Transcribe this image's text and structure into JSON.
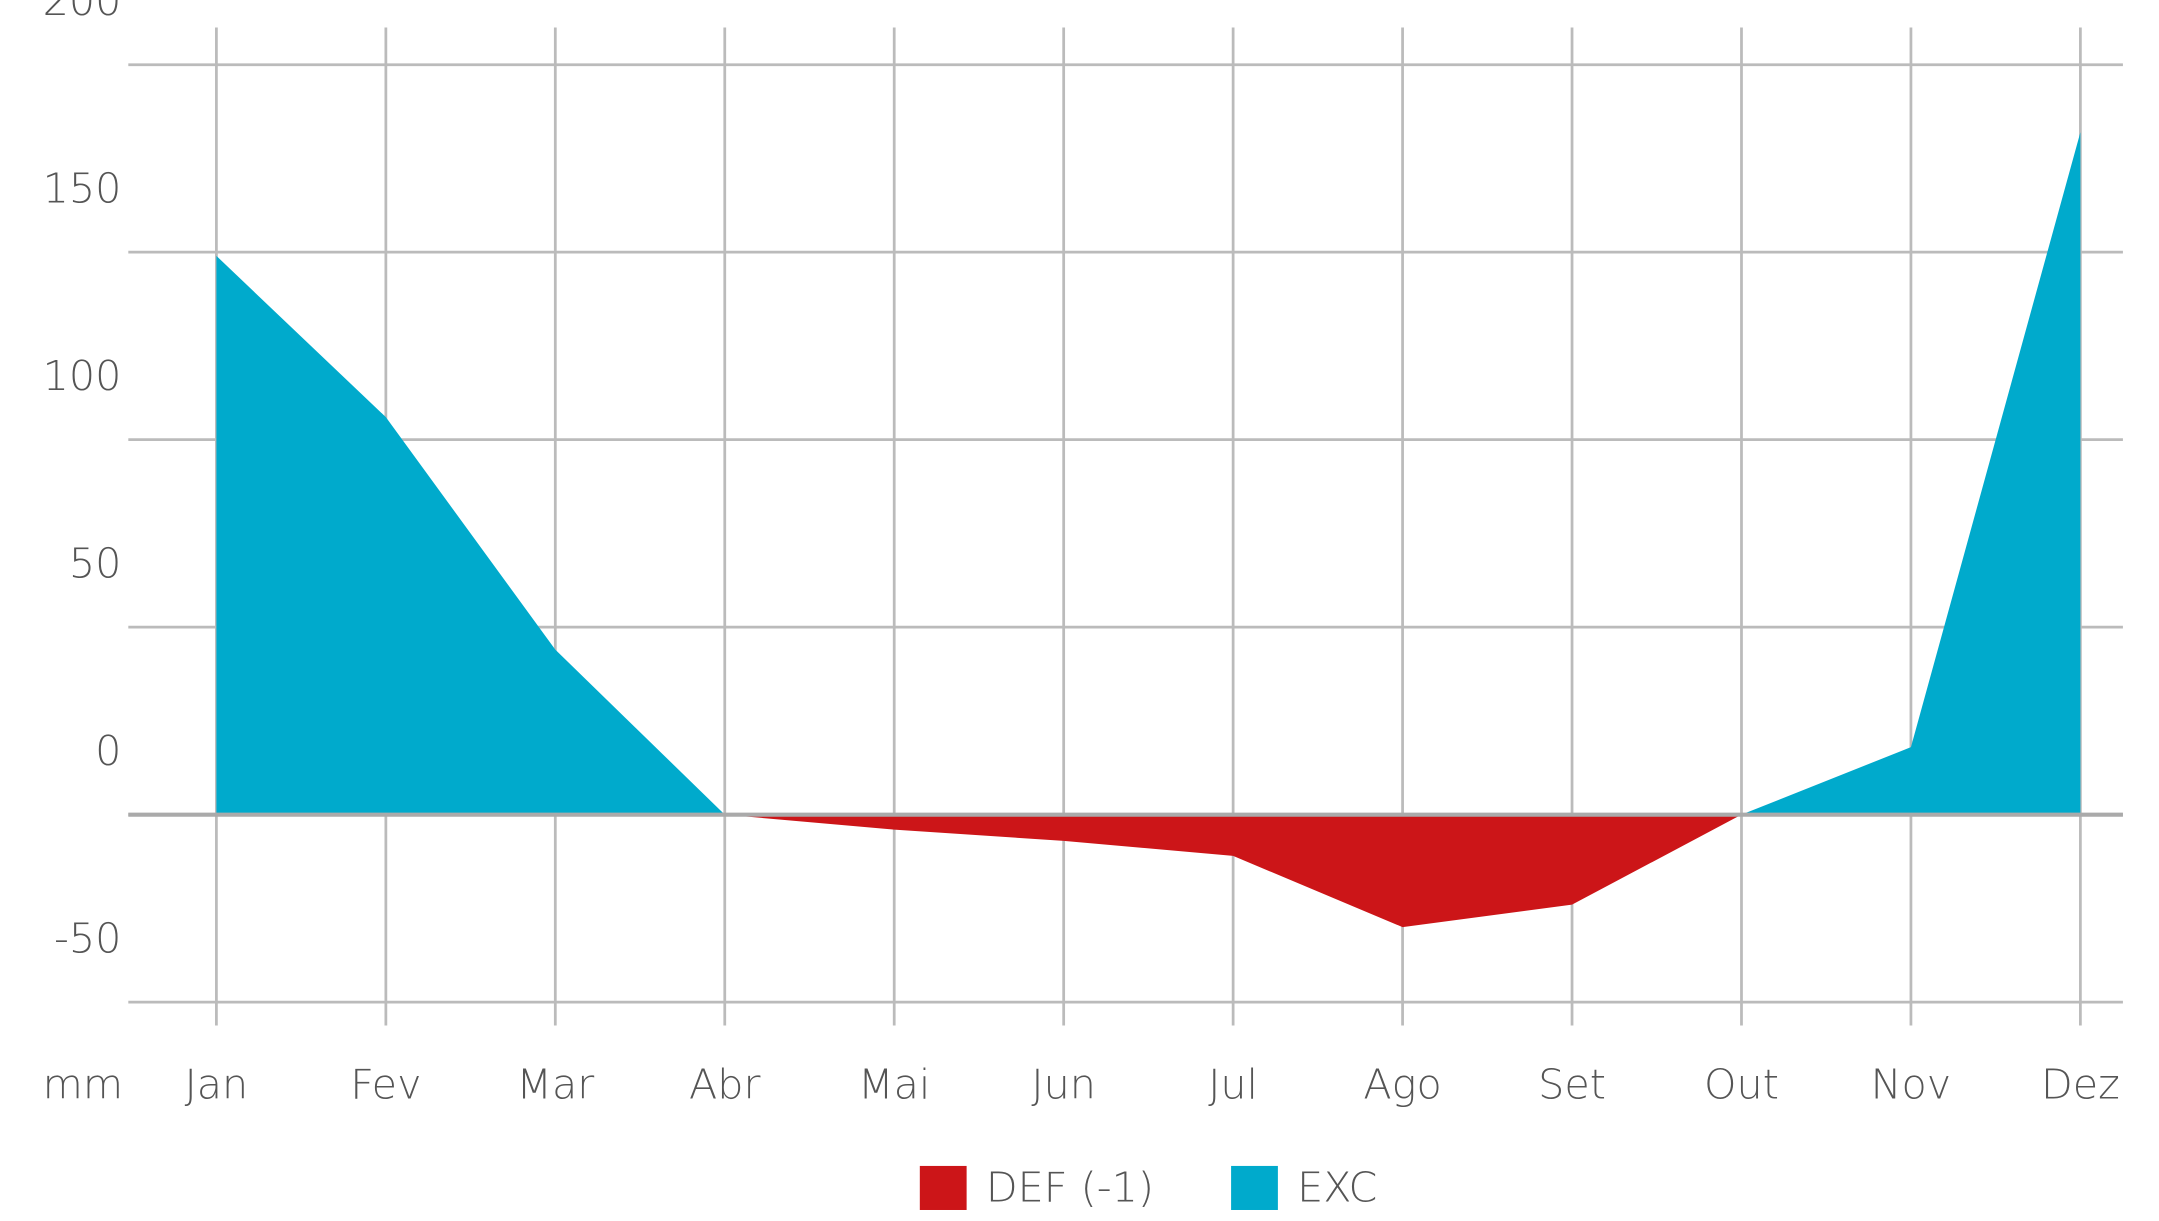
{
  "chart_data": {
    "type": "area",
    "y_label": "mm",
    "categories": [
      "Jan",
      "Fev",
      "Mar",
      "Abr",
      "Mai",
      "Jun",
      "Jul",
      "Ago",
      "Set",
      "Out",
      "Nov",
      "Dez"
    ],
    "series": [
      {
        "name": "DEF (-1)",
        "color": "#cc1518",
        "values": [
          0,
          0,
          0,
          0,
          -4,
          -7,
          -11,
          -30,
          -24,
          0,
          0,
          0
        ]
      },
      {
        "name": "EXC",
        "color": "#00aacc",
        "values": [
          149,
          106,
          44,
          0,
          0,
          0,
          0,
          0,
          0,
          0,
          18,
          182
        ]
      }
    ],
    "ylim": [
      -50,
      200
    ],
    "yticks": [
      -50,
      0,
      50,
      100,
      150,
      200
    ],
    "grid": true,
    "legend": "bottom"
  }
}
